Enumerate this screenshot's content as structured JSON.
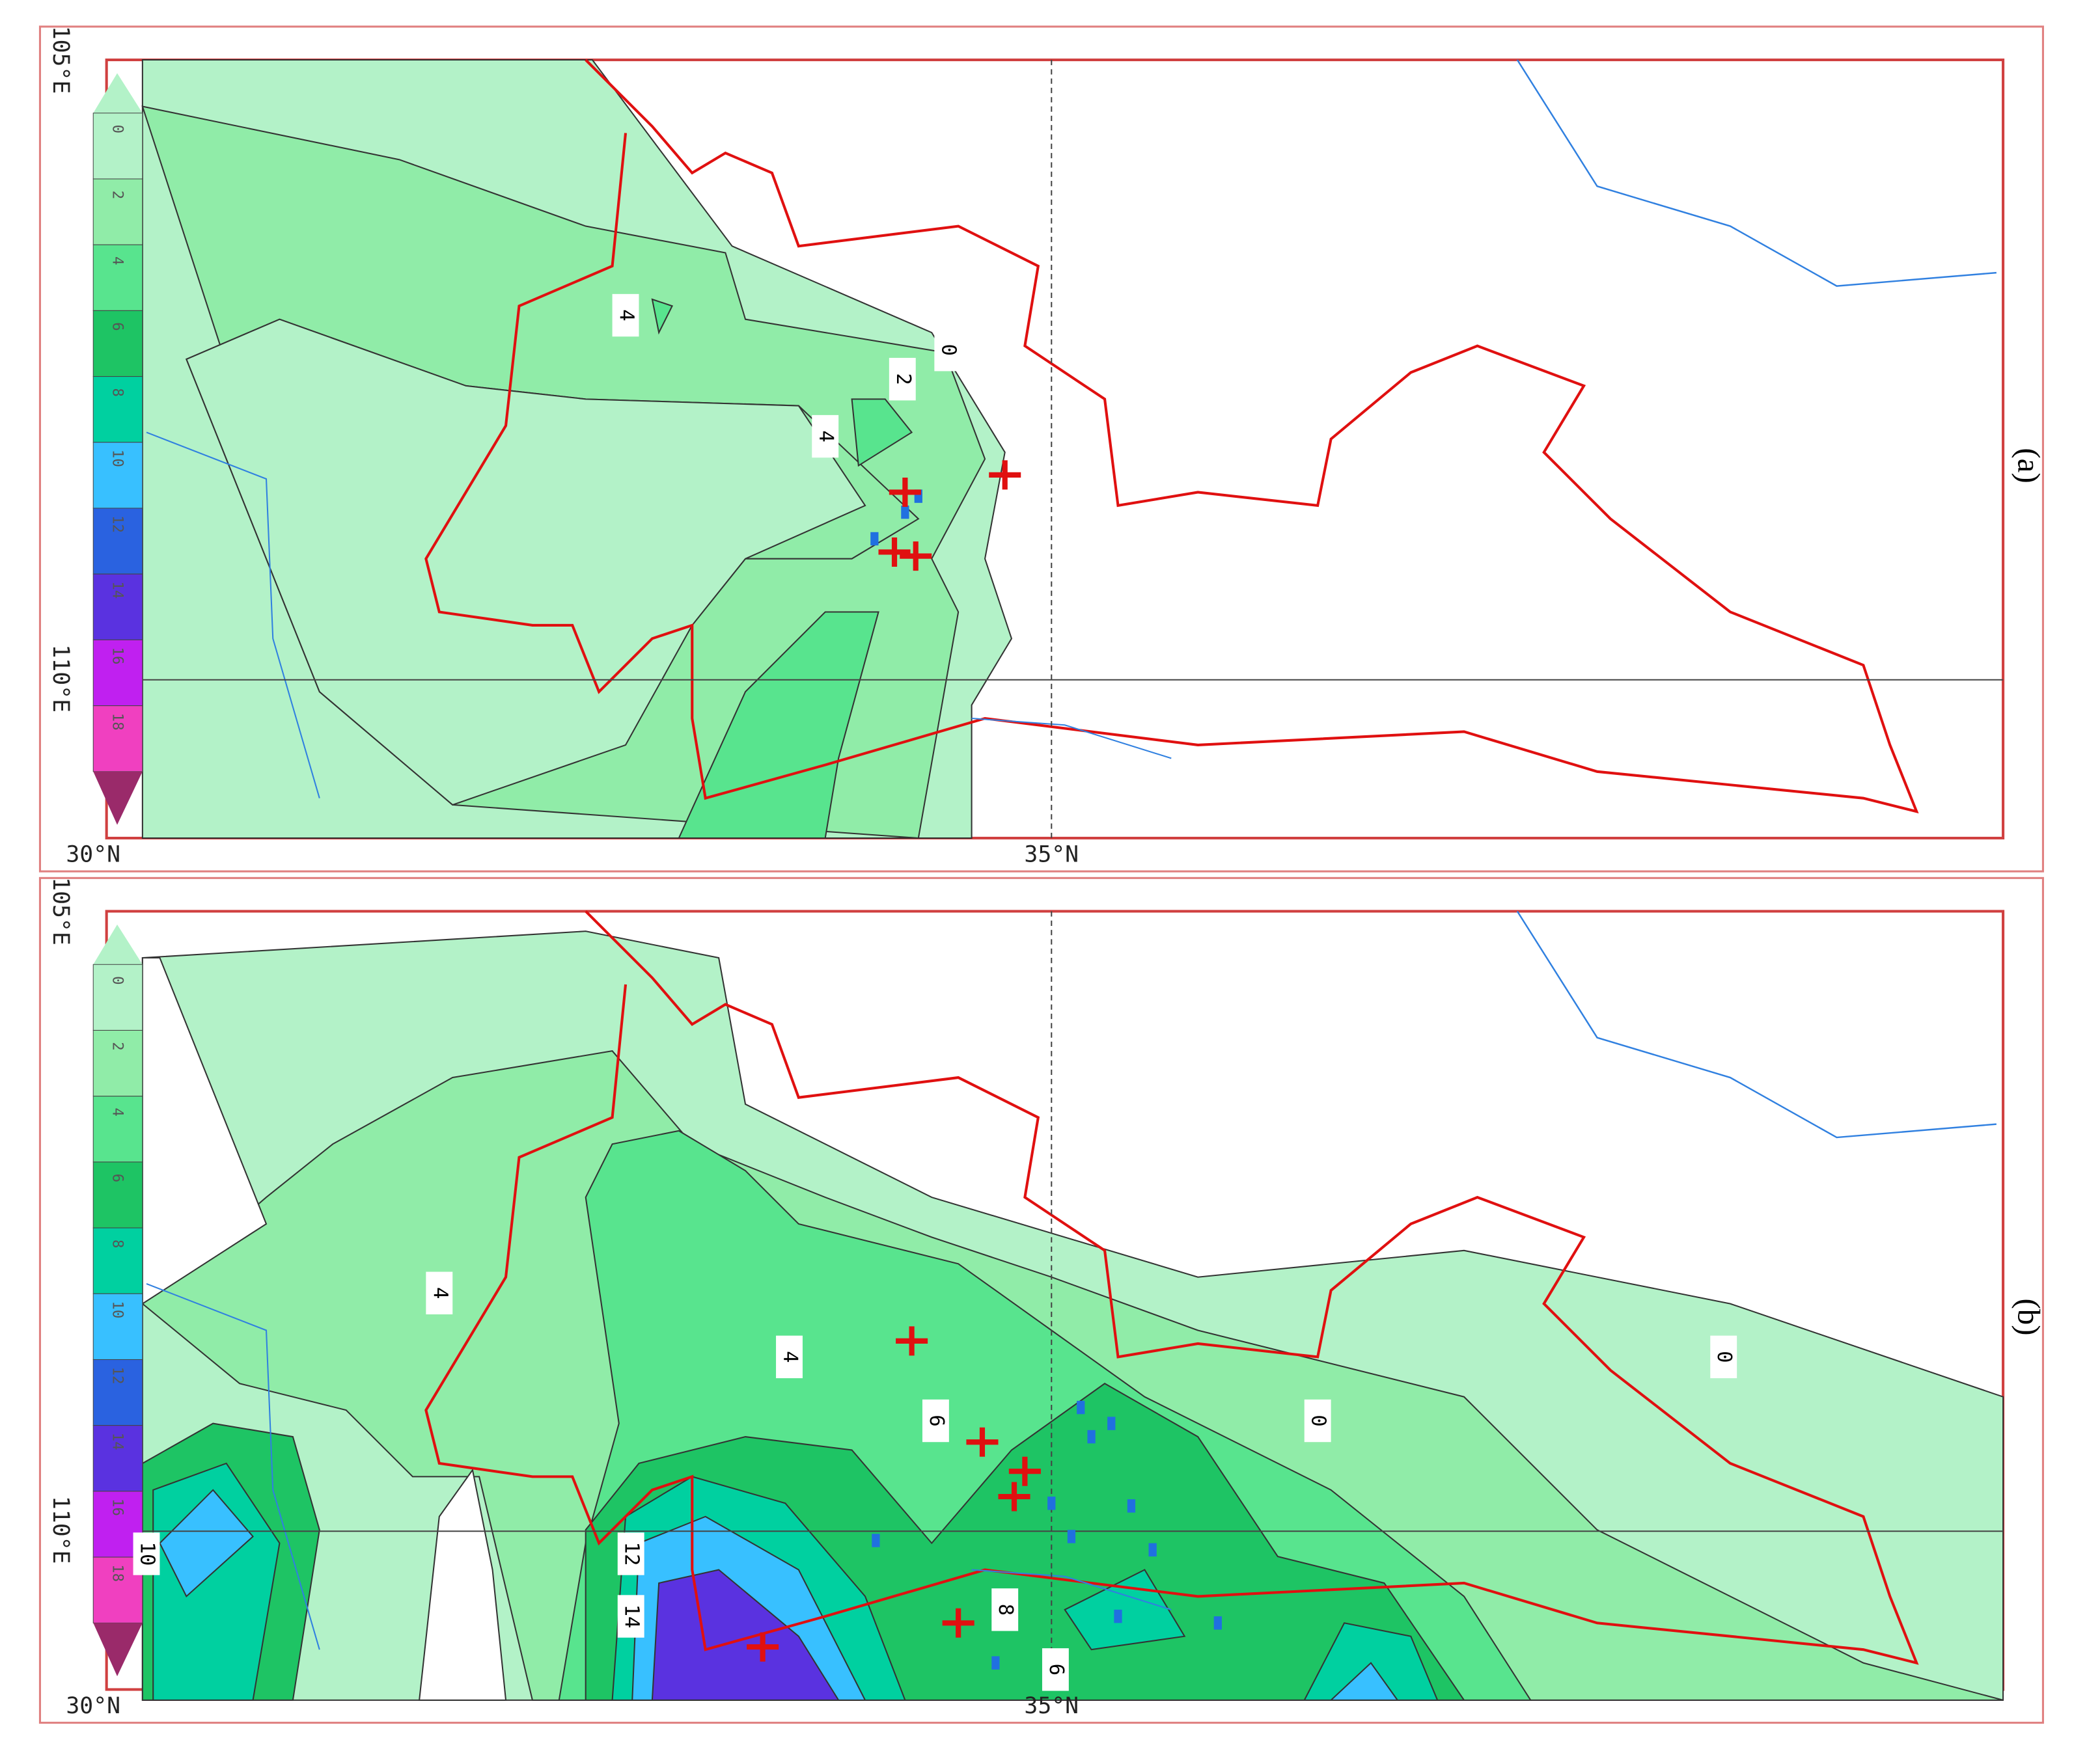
{
  "panels": [
    {
      "label": "(a)",
      "lon_labels": [
        "105°E",
        "110°E"
      ],
      "lat_labels": [
        "30°N",
        "35°N"
      ],
      "colorbar": [
        "0",
        "2",
        "4",
        "6",
        "8",
        "10",
        "12",
        "14",
        "16",
        "18"
      ],
      "contour_labels": [
        "4",
        "0",
        "2",
        "4"
      ]
    },
    {
      "label": "(b)",
      "lon_labels": [
        "105°E",
        "110°E"
      ],
      "lat_labels": [
        "30°N",
        "35°N"
      ],
      "colorbar": [
        "0",
        "2",
        "4",
        "6",
        "8",
        "10",
        "12",
        "14",
        "16",
        "18"
      ],
      "contour_labels": [
        "4",
        "4",
        "6",
        "0",
        "0",
        "10",
        "12",
        "14",
        "8",
        "6"
      ]
    }
  ]
}
